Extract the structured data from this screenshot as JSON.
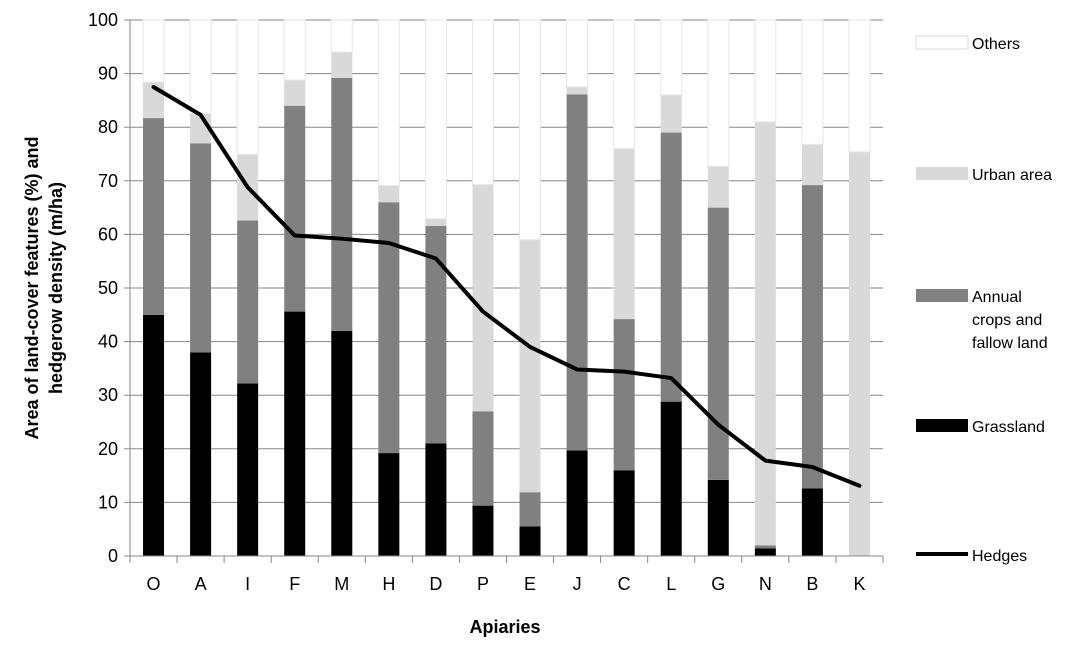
{
  "chart_data": {
    "type": "bar",
    "stacked": true,
    "title": "",
    "xlabel": "Apiaries",
    "ylabel": "Area of land-cover features (%) and hedgerow density (m/ha)",
    "ylim": [
      0,
      100
    ],
    "yticks": [
      0,
      10,
      20,
      30,
      40,
      50,
      60,
      70,
      80,
      90,
      100
    ],
    "grid": true,
    "legend_position": "right",
    "categories": [
      "O",
      "A",
      "I",
      "F",
      "M",
      "H",
      "D",
      "P",
      "E",
      "J",
      "C",
      "L",
      "G",
      "N",
      "B",
      "K"
    ],
    "series": [
      {
        "name": "Grassland",
        "kind": "bar",
        "color": "#000000",
        "values": [
          45,
          38,
          32.2,
          45.6,
          42,
          19.2,
          21,
          9.4,
          5.5,
          19.7,
          16,
          28.8,
          14.2,
          1.4,
          12.6,
          0
        ]
      },
      {
        "name": "Annual crops and fallow land",
        "kind": "bar",
        "color": "#808080",
        "values": [
          36.7,
          39,
          30.4,
          38.4,
          47.2,
          46.8,
          40.6,
          17.6,
          6.4,
          66.4,
          28.2,
          50.2,
          50.8,
          0.6,
          56.6,
          0
        ]
      },
      {
        "name": "Urban area",
        "kind": "bar",
        "color": "#d9d9d9",
        "values": [
          6.7,
          5.5,
          12.3,
          4.8,
          4.8,
          3.1,
          1.3,
          42.3,
          47.1,
          1.4,
          31.8,
          7,
          7.7,
          79,
          7.6,
          75.4
        ]
      },
      {
        "name": "Others",
        "kind": "bar",
        "color": "#ffffff",
        "values": [
          11.6,
          17.5,
          25.1,
          11.2,
          6,
          30.9,
          37.1,
          30.7,
          41,
          12.5,
          24,
          14,
          27.3,
          19,
          23.2,
          24.6
        ]
      },
      {
        "name": "Hedges",
        "kind": "line",
        "color": "#000000",
        "values": [
          87.5,
          82.3,
          68.8,
          59.8,
          59.2,
          58.4,
          55.5,
          45.6,
          39,
          34.8,
          34.4,
          33.2,
          24.5,
          17.8,
          16.6,
          13.1
        ]
      }
    ],
    "legend": [
      {
        "name": "Others",
        "label_lines": [
          "Others"
        ],
        "swatch": "box",
        "color": "#ffffff"
      },
      {
        "name": "Urban area",
        "label_lines": [
          "Urban area"
        ],
        "swatch": "box",
        "color": "#d9d9d9"
      },
      {
        "name": "Annual crops and fallow land",
        "label_lines": [
          "Annual",
          "crops and",
          "fallow land"
        ],
        "swatch": "box",
        "color": "#808080"
      },
      {
        "name": "Grassland",
        "label_lines": [
          "Grassland"
        ],
        "swatch": "box",
        "color": "#000000"
      },
      {
        "name": "Hedges",
        "label_lines": [
          "Hedges"
        ],
        "swatch": "line",
        "color": "#000000"
      }
    ]
  }
}
